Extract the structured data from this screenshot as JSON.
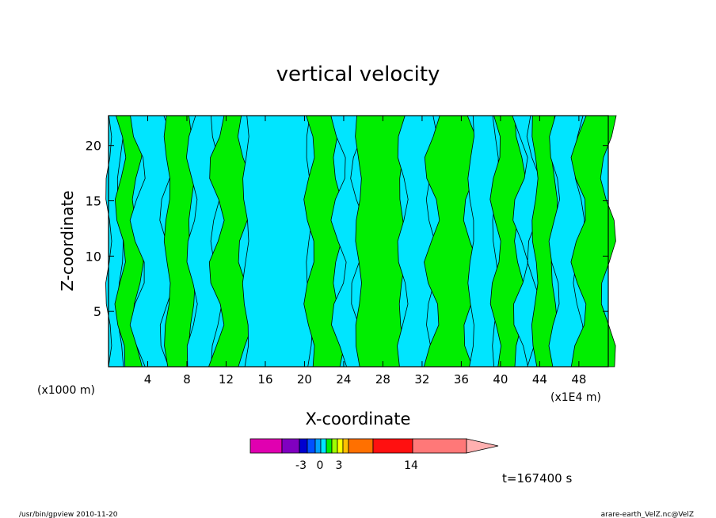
{
  "chart_data": {
    "type": "heatmap",
    "title": "vertical velocity",
    "xlabel": "X-coordinate",
    "ylabel": "Z-coordinate",
    "x_unit_left": "(x1000 m)",
    "x_unit_right": "(x1E4 m)",
    "xlim": [
      0,
      51
    ],
    "ylim": [
      0,
      22.7
    ],
    "x_ticks": [
      "4",
      "8",
      "12",
      "16",
      "20",
      "24",
      "28",
      "32",
      "36",
      "40",
      "44",
      "48"
    ],
    "y_ticks": [
      "5",
      "10",
      "15",
      "20"
    ],
    "x_tick_values": [
      4,
      8,
      12,
      16,
      20,
      24,
      28,
      32,
      36,
      40,
      44,
      48
    ],
    "y_tick_values": [
      5,
      10,
      15,
      20
    ],
    "fill_colors": {
      "negative": "#00e5ff",
      "positive": "#00ee00"
    },
    "bands": [
      {
        "x0": 0.0,
        "x1": 1.2,
        "z0": 0,
        "z1": 22.7,
        "color": "#00e5ff"
      },
      {
        "x0": 1.2,
        "x1": 3.0,
        "z0": 0,
        "z1": 22.7,
        "color": "#00ee00"
      },
      {
        "x0": 3.0,
        "x1": 6.0,
        "z0": 0,
        "z1": 22.7,
        "color": "#00e5ff"
      },
      {
        "x0": 6.0,
        "x1": 8.5,
        "z0": 0,
        "z1": 22.7,
        "color": "#00ee00"
      },
      {
        "x0": 8.5,
        "x1": 11.0,
        "z0": 0,
        "z1": 22.7,
        "color": "#00e5ff"
      },
      {
        "x0": 11.0,
        "x1": 14.0,
        "z0": 0,
        "z1": 22.7,
        "color": "#00ee00"
      },
      {
        "x0": 14.0,
        "x1": 20.5,
        "z0": 0,
        "z1": 22.7,
        "color": "#00e5ff"
      },
      {
        "x0": 20.5,
        "x1": 23.5,
        "z0": 0,
        "z1": 22.7,
        "color": "#00ee00"
      },
      {
        "x0": 23.5,
        "x1": 25.5,
        "z0": 0,
        "z1": 22.7,
        "color": "#00e5ff"
      },
      {
        "x0": 25.5,
        "x1": 30.0,
        "z0": 0,
        "z1": 22.7,
        "color": "#00ee00"
      },
      {
        "x0": 30.0,
        "x1": 33.0,
        "z0": 0,
        "z1": 22.7,
        "color": "#00e5ff"
      },
      {
        "x0": 33.0,
        "x1": 37.0,
        "z0": 0,
        "z1": 22.7,
        "color": "#00ee00"
      },
      {
        "x0": 37.0,
        "x1": 39.5,
        "z0": 0,
        "z1": 22.7,
        "color": "#00e5ff"
      },
      {
        "x0": 39.5,
        "x1": 42.0,
        "z0": 0,
        "z1": 22.7,
        "color": "#00ee00"
      },
      {
        "x0": 42.0,
        "x1": 43.5,
        "z0": 0,
        "z1": 22.7,
        "color": "#00e5ff"
      },
      {
        "x0": 43.5,
        "x1": 45.5,
        "z0": 0,
        "z1": 22.7,
        "color": "#00ee00"
      },
      {
        "x0": 45.5,
        "x1": 48.0,
        "z0": 0,
        "z1": 22.7,
        "color": "#00e5ff"
      },
      {
        "x0": 48.0,
        "x1": 51.0,
        "z0": 0,
        "z1": 22.7,
        "color": "#00ee00"
      }
    ],
    "colorbar": {
      "colors": [
        "#e000b0",
        "#8000c0",
        "#0000d0",
        "#0050ff",
        "#00a0ff",
        "#00e5ff",
        "#00ee00",
        "#a0ff00",
        "#ffff00",
        "#ffc000",
        "#ff7000",
        "#ff1010",
        "#ff7878",
        "#ffb0b0"
      ],
      "labels": [
        "-3",
        "0",
        "3",
        "14"
      ]
    },
    "time_label": "t=167400 s"
  },
  "footer": {
    "left": "/usr/bin/gpview   2010-11-20",
    "right": "arare-earth_VelZ.nc@VelZ"
  }
}
